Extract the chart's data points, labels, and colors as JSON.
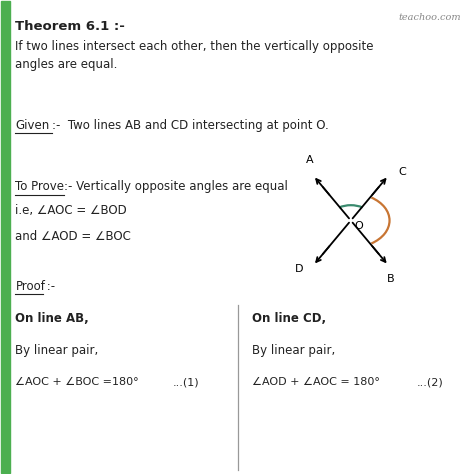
{
  "title": "Theorem 6.1 :-",
  "subtitle": "If two lines intersect each other, then the vertically opposite\nangles are equal.",
  "given_label": "Given",
  "given_text": ":-  Two lines AB and CD intersecting at point O.",
  "toprove_label": "To Prove",
  "toprove_text": ":- Vertically opposite angles are equal",
  "ie_text": "i.e, ∠AOC = ∠BOD",
  "and_text": "and ∠AOD = ∠BOC",
  "proof_label": "Proof",
  "proof_colon": " :-",
  "col1_head": "On line AB,",
  "col1_sub": "By linear pair,",
  "col1_eq": "∠AOC + ∠BOC =180°",
  "col1_num": "...(1)",
  "col2_head": "On line CD,",
  "col2_sub": "By linear pair,",
  "col2_eq": "∠AOD + ∠AOC = 180°",
  "col2_num": "...(2)",
  "watermark": "teachoo.com",
  "bg_color": "#ffffff",
  "text_color": "#222222",
  "green_color": "#3a8a6e",
  "orange_color": "#c87533",
  "green_bar_color": "#4caf50",
  "divider_color": "#999999"
}
